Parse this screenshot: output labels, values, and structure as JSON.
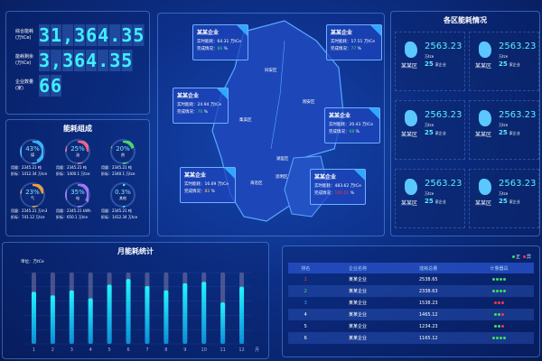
{
  "summary": {
    "items": [
      {
        "label": "综合能耗(万tCe)",
        "value": "31,364.35"
      },
      {
        "label": "能耗剩余(万tCe)",
        "value": "3,364.35"
      },
      {
        "label": "企业数量(家)",
        "value": "66"
      }
    ]
  },
  "composition": {
    "title": "能耗组成",
    "items": [
      {
        "pct": "43%",
        "name": "煤",
        "usage": "用量：2345.21 吨",
        "std": "折标：1412.34 万tce",
        "color": "#2fb6ff",
        "frac": 0.43
      },
      {
        "pct": "25%",
        "name": "油",
        "usage": "用量：2345.21 吨",
        "std": "折标：1400.1 万tce",
        "color": "#ff5a7a",
        "frac": 0.25
      },
      {
        "pct": "20%",
        "name": "热",
        "usage": "用量：2345.21 吨",
        "std": "折标：2340.1 万tce",
        "color": "#3fe05a",
        "frac": 0.2
      },
      {
        "pct": "23%",
        "name": "气",
        "usage": "用量：2345.21 万m3",
        "std": "折标：741.12 万tce",
        "color": "#ffa020",
        "frac": 0.23
      },
      {
        "pct": "35%",
        "name": "电",
        "usage": "用量：2345.21 kWh",
        "std": "折标：650.1 万tce",
        "color": "#a070ff",
        "frac": 0.35
      },
      {
        "pct": "0.3%",
        "name": "其他",
        "usage": "用量：2345.21 吨",
        "std": "折标：1412.34 万tce",
        "color": "#40e8f0",
        "frac": 0.003
      }
    ]
  },
  "map": {
    "districts": [
      "同安区",
      "翔安区",
      "集美区",
      "海沧区",
      "湖里区",
      "思明区"
    ],
    "cards": [
      {
        "name": "某某企业",
        "rt_label": "实时能耗：",
        "rt": "64.31",
        "unit": "万tCe",
        "done_label": "完成情况：",
        "done": "86",
        "pct": "%",
        "color": "#3fe05a"
      },
      {
        "name": "某某企业",
        "rt_label": "实时能耗：",
        "rt": "17.51",
        "unit": "万tCe",
        "done_label": "完成情况：",
        "done": "77",
        "pct": "%",
        "color": "#3fe05a"
      },
      {
        "name": "某某企业",
        "rt_label": "实时能耗：",
        "rt": "24.94",
        "unit": "万tCe",
        "done_label": "完成情况：",
        "done": "76",
        "pct": "%",
        "color": "#3fe05a"
      },
      {
        "name": "某某企业",
        "rt_label": "实时能耗：",
        "rt": "20.43",
        "unit": "万tCe",
        "done_label": "完成情况：",
        "done": "68",
        "pct": "%",
        "color": "#3fe05a"
      },
      {
        "name": "某某企业",
        "rt_label": "实时能耗：",
        "rt": "16.69",
        "unit": "万tCe",
        "done_label": "完成情况：",
        "done": "82",
        "pct": "%",
        "color": "#ffd030"
      },
      {
        "name": "某某企业",
        "rt_label": "实时能耗：",
        "rt": "483.62",
        "unit": "万tCe",
        "done_label": "完成情况：",
        "done": "100.01",
        "pct": "%",
        "color": "#ff3050"
      }
    ]
  },
  "regions": {
    "title": "各区能耗情况",
    "items": [
      {
        "name": "某某区",
        "value": "2563.23",
        "unit": "万tce",
        "count": "25",
        "count_label": "家企业"
      },
      {
        "name": "某某区",
        "value": "2563.23",
        "unit": "万tce",
        "count": "25",
        "count_label": "家企业"
      },
      {
        "name": "某某区",
        "value": "2563.23",
        "unit": "万tce",
        "count": "25",
        "count_label": "家企业"
      },
      {
        "name": "某某区",
        "value": "2563.23",
        "unit": "万tce",
        "count": "25",
        "count_label": "家企业"
      },
      {
        "name": "某某区",
        "value": "2563.23",
        "unit": "万tce",
        "count": "25",
        "count_label": "家企业"
      },
      {
        "name": "某某区",
        "value": "2563.23",
        "unit": "万tce",
        "count": "25",
        "count_label": "家企业"
      }
    ]
  },
  "chart_data": {
    "type": "bar",
    "title": "月能耗统计",
    "ylabel": "单位：万tCe",
    "xunit": "月",
    "categories": [
      "1",
      "2",
      "3",
      "4",
      "5",
      "6",
      "7",
      "8",
      "9",
      "10",
      "11",
      "12"
    ],
    "values": [
      73,
      68,
      75,
      64,
      83,
      91,
      81,
      75,
      85,
      87,
      58,
      80
    ],
    "ylim": [
      0,
      100
    ],
    "grid": true,
    "color": "#1ee6ff"
  },
  "ranking": {
    "legend": [
      {
        "label": "正",
        "color": "#3fe05a"
      },
      {
        "label": "异",
        "color": "#ff3050"
      }
    ],
    "headers": [
      "排名",
      "企业名称",
      "能耗总量",
      "计量器具"
    ],
    "rows": [
      {
        "rank": "1",
        "rank_color": "#ff4050",
        "name": "某某企业",
        "total": "2538.65",
        "dots": [
          "g",
          "g",
          "g",
          "g"
        ]
      },
      {
        "rank": "2",
        "rank_color": "#3fe05a",
        "name": "某某企业",
        "total": "2338.63",
        "dots": [
          "g",
          "g",
          "g",
          "g"
        ]
      },
      {
        "rank": "3",
        "rank_color": "#4aa0ff",
        "name": "某某企业",
        "total": "1538.23",
        "dots": [
          "r",
          "r",
          "r"
        ]
      },
      {
        "rank": "4",
        "rank_color": "#ffffff",
        "name": "某某企业",
        "total": "1465.12",
        "dots": [
          "g",
          "g",
          "r"
        ]
      },
      {
        "rank": "5",
        "rank_color": "#ffffff",
        "name": "某某企业",
        "total": "1234.23",
        "dots": [
          "g",
          "g",
          "r"
        ]
      },
      {
        "rank": "6",
        "rank_color": "#ffffff",
        "name": "某某企业",
        "total": "1165.12",
        "dots": [
          "g",
          "g",
          "g",
          "g"
        ]
      }
    ]
  }
}
